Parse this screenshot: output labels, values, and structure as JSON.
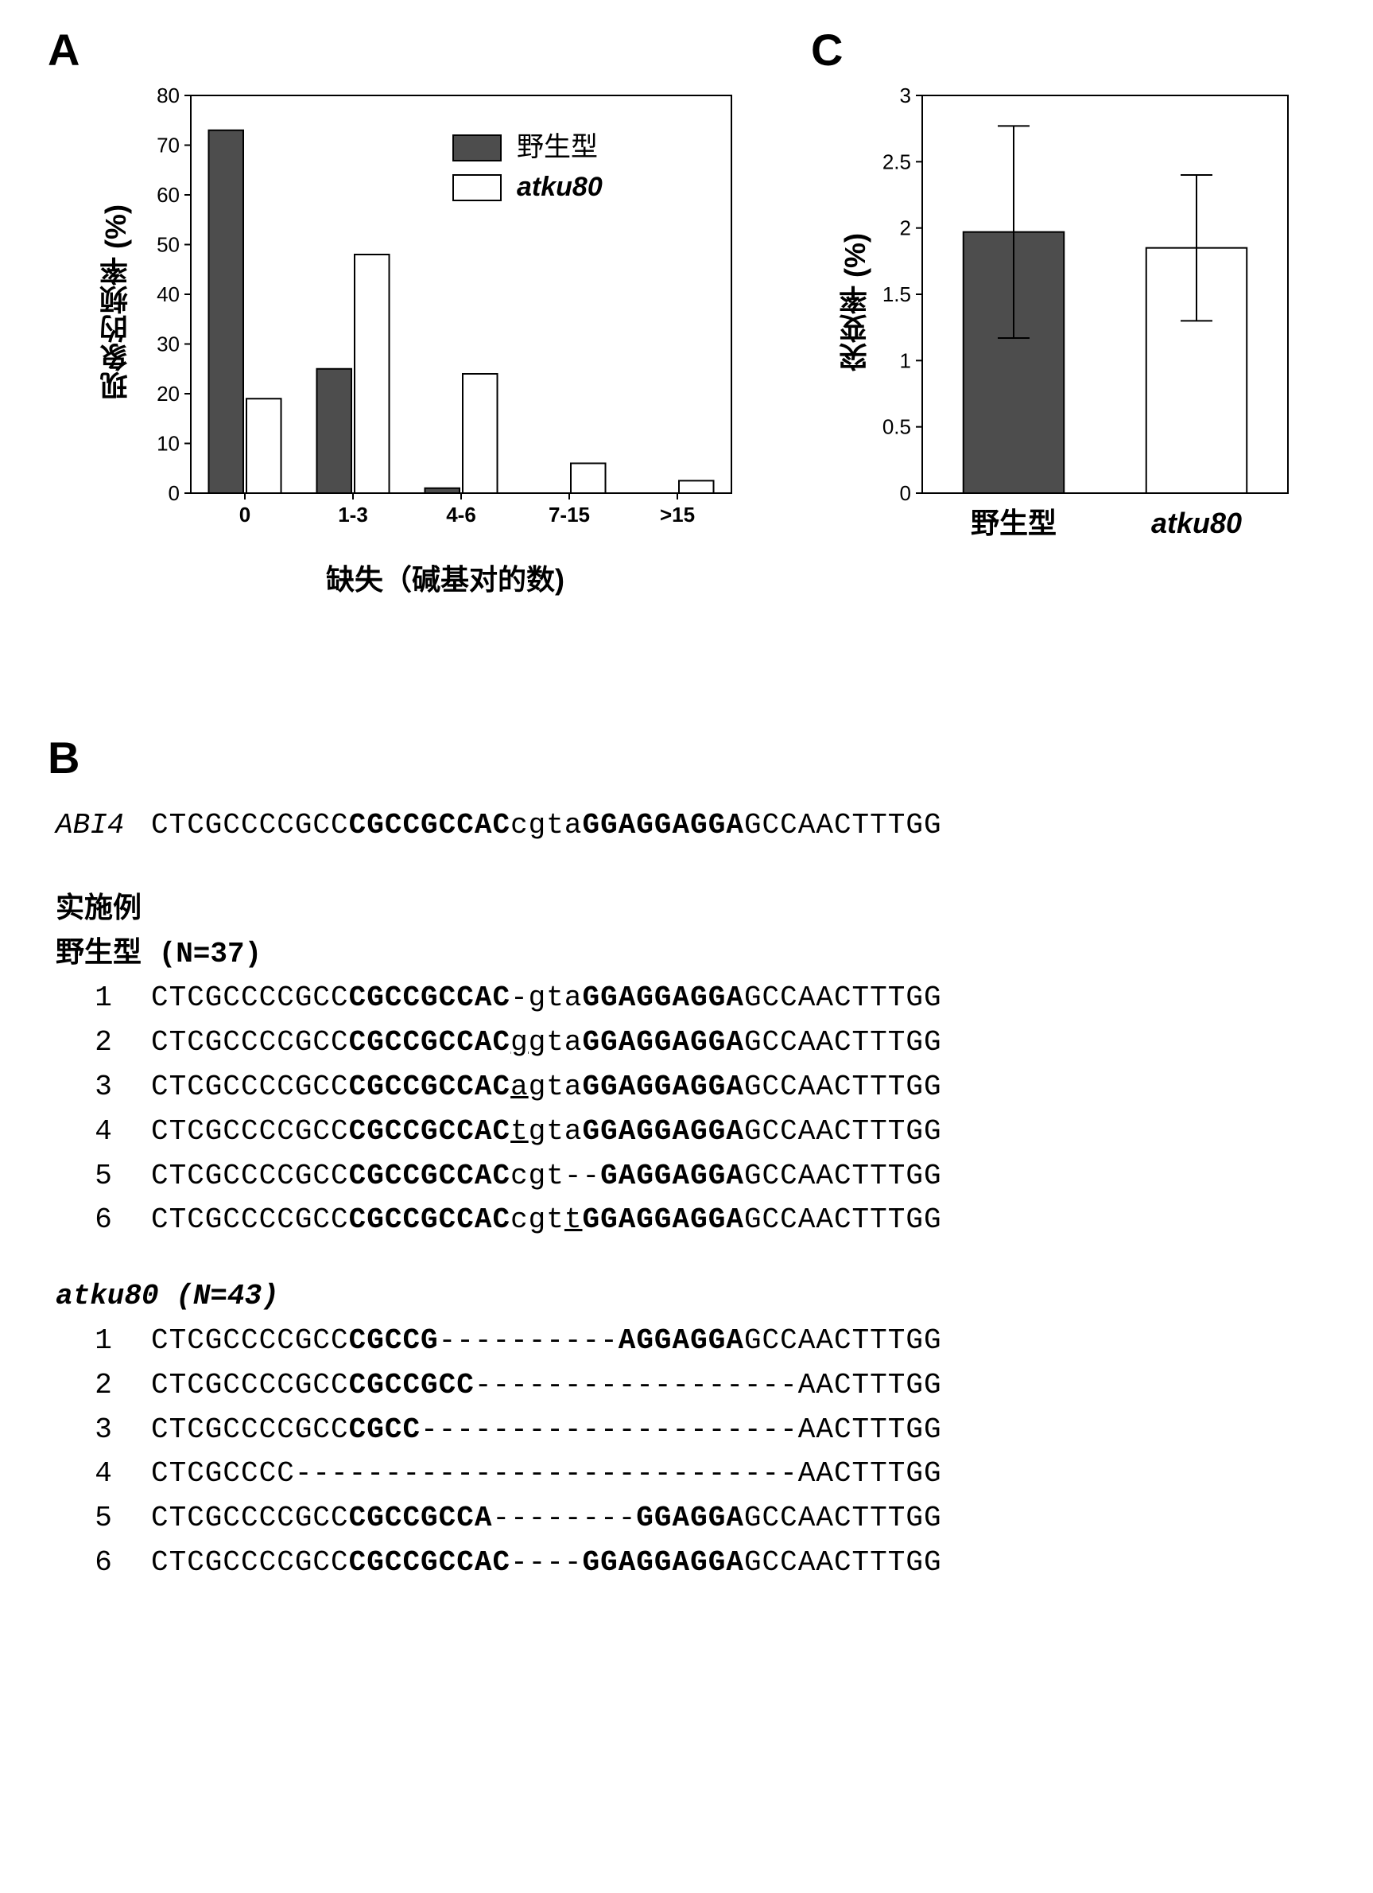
{
  "panelA": {
    "label": "A",
    "ylabel": "现象的频率 (%)",
    "ylabel_fontsize": 36,
    "xlabel": "缺失（碱基对的数)",
    "xlabel_fontsize": 36,
    "legend": {
      "wt": "野生型",
      "mut": "atku80"
    },
    "legend_fontsize": 34,
    "categories": [
      "0",
      "1-3",
      "4-6",
      "7-15",
      ">15"
    ],
    "wt_values": [
      73,
      25,
      1,
      0,
      0
    ],
    "mut_values": [
      19,
      48,
      24,
      6,
      2.5
    ],
    "wt_color": "#4d4d4d",
    "mut_color": "#ffffff",
    "border_color": "#000000",
    "ylim": [
      0,
      80
    ],
    "ytick_step": 10,
    "tick_fontsize": 26,
    "plot_bg": "#ffffff",
    "grid_color": "#000000"
  },
  "panelC": {
    "label": "C",
    "ylabel": "突变率 (%)",
    "ylabel_fontsize": 36,
    "categories": [
      "野生型",
      "atku80"
    ],
    "cat_fontsize": 36,
    "values": [
      1.97,
      1.85
    ],
    "err_low": [
      0.8,
      0.55
    ],
    "err_high": [
      0.8,
      0.55
    ],
    "colors": [
      "#4d4d4d",
      "#ffffff"
    ],
    "border_color": "#000000",
    "ylim": [
      0,
      3
    ],
    "ytick_step": 0.5,
    "tick_fontsize": 26,
    "plot_bg": "#ffffff"
  },
  "panelB": {
    "label": "B",
    "ref_name": "ABI4",
    "ref_seq": [
      {
        "t": "CTCGCCCCGCC",
        "s": "n"
      },
      {
        "t": "CGCCGCCAC",
        "s": "b"
      },
      {
        "t": "cgta",
        "s": "n"
      },
      {
        "t": "GGAGGAGGA",
        "s": "b"
      },
      {
        "t": "GCCAACTTTGG",
        "s": "n"
      }
    ],
    "example_label": "实施例",
    "wt_header": "野生型  (N=37)",
    "wt_rows": [
      {
        "num": "1",
        "seq": [
          {
            "t": "CTCGCCCCGCC",
            "s": "n"
          },
          {
            "t": "CGCCGCCAC",
            "s": "b"
          },
          {
            "t": "-gta",
            "s": "n"
          },
          {
            "t": "GGAGGAGGA",
            "s": "b"
          },
          {
            "t": "GCCAACTTTGG",
            "s": "n"
          }
        ]
      },
      {
        "num": "2",
        "seq": [
          {
            "t": "CTCGCCCCGCC",
            "s": "n"
          },
          {
            "t": "CGCCGCCAC",
            "s": "b"
          },
          {
            "t": "g",
            "s": "u"
          },
          {
            "t": "gta",
            "s": "n"
          },
          {
            "t": "GGAGGAGGA",
            "s": "b"
          },
          {
            "t": "GCCAACTTTGG",
            "s": "n"
          }
        ]
      },
      {
        "num": "3",
        "seq": [
          {
            "t": "CTCGCCCCGCC",
            "s": "n"
          },
          {
            "t": "CGCCGCCAC",
            "s": "b"
          },
          {
            "t": "a",
            "s": "u"
          },
          {
            "t": "gta",
            "s": "n"
          },
          {
            "t": "GGAGGAGGA",
            "s": "b"
          },
          {
            "t": "GCCAACTTTGG",
            "s": "n"
          }
        ]
      },
      {
        "num": "4",
        "seq": [
          {
            "t": "CTCGCCCCGCC",
            "s": "n"
          },
          {
            "t": "CGCCGCCAC",
            "s": "b"
          },
          {
            "t": "t",
            "s": "u"
          },
          {
            "t": "gta",
            "s": "n"
          },
          {
            "t": "GGAGGAGGA",
            "s": "b"
          },
          {
            "t": "GCCAACTTTGG",
            "s": "n"
          }
        ]
      },
      {
        "num": "5",
        "seq": [
          {
            "t": "CTCGCCCCGCC",
            "s": "n"
          },
          {
            "t": "CGCCGCCAC",
            "s": "b"
          },
          {
            "t": "cgt--",
            "s": "n"
          },
          {
            "t": "GAGGAGGA",
            "s": "b"
          },
          {
            "t": "GCCAACTTTGG",
            "s": "n"
          }
        ]
      },
      {
        "num": "6",
        "seq": [
          {
            "t": "CTCGCCCCGCC",
            "s": "n"
          },
          {
            "t": "CGCCGCCAC",
            "s": "b"
          },
          {
            "t": "cgt",
            "s": "n"
          },
          {
            "t": "t",
            "s": "u"
          },
          {
            "t": "GGAGGAGGA",
            "s": "b"
          },
          {
            "t": "GCCAACTTTGG",
            "s": "n"
          }
        ]
      }
    ],
    "mut_header": "atku80   (N=43)",
    "mut_rows": [
      {
        "num": "1",
        "seq": [
          {
            "t": "CTCGCCCCGCC",
            "s": "n"
          },
          {
            "t": "CGCCG",
            "s": "b"
          },
          {
            "t": "----------",
            "s": "n"
          },
          {
            "t": "AGGAGGA",
            "s": "b"
          },
          {
            "t": "GCCAACTTTGG",
            "s": "n"
          }
        ]
      },
      {
        "num": "2",
        "seq": [
          {
            "t": "CTCGCCCCGCC",
            "s": "n"
          },
          {
            "t": "CGCCGCC",
            "s": "b"
          },
          {
            "t": "------------------",
            "s": "n"
          },
          {
            "t": "AACTTTGG",
            "s": "n"
          }
        ]
      },
      {
        "num": "3",
        "seq": [
          {
            "t": "CTCGCCCCGCC",
            "s": "n"
          },
          {
            "t": "CGCC",
            "s": "b"
          },
          {
            "t": "---------------------",
            "s": "n"
          },
          {
            "t": "AACTTTGG",
            "s": "n"
          }
        ]
      },
      {
        "num": "4",
        "seq": [
          {
            "t": "CTCGCCCC",
            "s": "n"
          },
          {
            "t": "----------------------------",
            "s": "n"
          },
          {
            "t": "AACTTTGG",
            "s": "n"
          }
        ]
      },
      {
        "num": "5",
        "seq": [
          {
            "t": "CTCGCCCCGCC",
            "s": "n"
          },
          {
            "t": "CGCCGCCA",
            "s": "b"
          },
          {
            "t": "--------",
            "s": "n"
          },
          {
            "t": "GGAGGA",
            "s": "b"
          },
          {
            "t": "GCCAACTTTGG",
            "s": "n"
          }
        ]
      },
      {
        "num": "6",
        "seq": [
          {
            "t": "CTCGCCCCGCC",
            "s": "n"
          },
          {
            "t": "CGCCGCCAC",
            "s": "b"
          },
          {
            "t": "----",
            "s": "n"
          },
          {
            "t": "GGAGGAGGA",
            "s": "b"
          },
          {
            "t": "GCCAACTTTGG",
            "s": "n"
          }
        ]
      }
    ]
  }
}
